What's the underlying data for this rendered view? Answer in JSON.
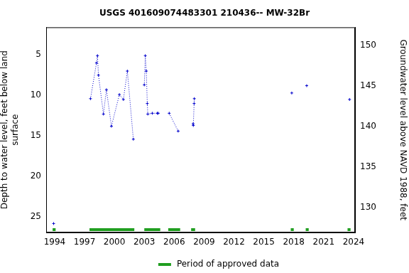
{
  "chart_data": {
    "type": "scatter",
    "title": "USGS 401609074483301 210436-- MW-32Br",
    "y_label": [
      "Depth to water level, feet below land",
      "surface"
    ],
    "y2_label": "Groundwater level above NAVD 1988, feet",
    "x": [
      1993.9,
      null,
      1997.6,
      1998.2,
      1998.3,
      1998.4,
      1998.9,
      1999.2,
      1999.7,
      2000.5,
      2000.9,
      2001.3,
      2001.9,
      null,
      2003.0,
      2003.1,
      2003.2,
      2003.3,
      2003.35,
      2003.8,
      2004.3,
      2004.4,
      null,
      2005.5,
      2006.4,
      null,
      2007.9,
      2007.92,
      2008.0,
      2008.02,
      null,
      2017.8,
      null,
      2019.3,
      null,
      2023.6
    ],
    "series": [
      {
        "color": "#0000cc",
        "marker": "plus",
        "line_style": "dotted",
        "values": [
          25.8,
          null,
          10.4,
          6.0,
          5.1,
          7.5,
          12.3,
          9.3,
          13.8,
          9.9,
          10.5,
          7.0,
          15.4,
          null,
          8.7,
          5.1,
          7.0,
          11.0,
          12.3,
          12.2,
          12.2,
          12.2,
          null,
          12.2,
          14.4,
          null,
          13.5,
          13.7,
          11.0,
          10.4,
          null,
          9.7,
          null,
          8.8,
          null,
          10.5
        ]
      }
    ],
    "approved_periods": {
      "name": "Period of approved data",
      "color": "#1f9e1f",
      "ranges": [
        [
          1993.8,
          1994.1
        ],
        [
          1997.5,
          2002.0
        ],
        [
          2003.0,
          2004.6
        ],
        [
          2005.4,
          2006.6
        ],
        [
          2007.7,
          2008.1
        ],
        [
          2017.7,
          2018.0
        ],
        [
          2019.2,
          2019.5
        ],
        [
          2023.4,
          2023.7
        ]
      ]
    },
    "xlim": [
      1993.15,
      2024.15
    ],
    "xticks": [
      1994,
      1997,
      2000,
      2003,
      2006,
      2009,
      2012,
      2015,
      2018,
      2021,
      2024
    ],
    "ylim": [
      26.9,
      1.6
    ],
    "yticks": [
      5,
      10,
      15,
      20,
      25
    ],
    "y2lim": [
      126.9,
      152.2
    ],
    "y2ticks": [
      130,
      135,
      140,
      145,
      150
    ],
    "grid": false
  }
}
